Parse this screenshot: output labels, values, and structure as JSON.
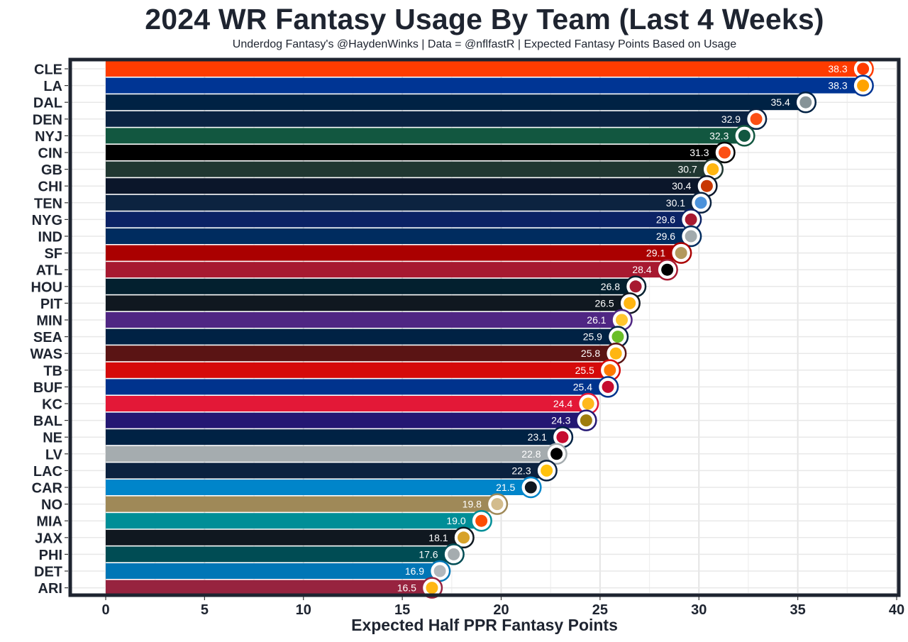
{
  "chart_data": {
    "type": "bar",
    "orientation": "horizontal",
    "title": "2024 WR Fantasy Usage By Team (Last 4 Weeks)",
    "subtitle": "Underdog Fantasy's @HaydenWinks | Data = @nflfastR | Expected Fantasy Points Based on Usage",
    "xlabel": "Expected Half PPR Fantasy Points",
    "ylabel": "",
    "xlim": [
      0,
      40
    ],
    "xticks": [
      0,
      5,
      10,
      15,
      20,
      25,
      30,
      35,
      40
    ],
    "grid": true,
    "legend": "none",
    "categories": [
      "CLE",
      "LA",
      "DAL",
      "DEN",
      "NYJ",
      "CIN",
      "GB",
      "CHI",
      "TEN",
      "NYG",
      "IND",
      "SF",
      "ATL",
      "HOU",
      "PIT",
      "MIN",
      "SEA",
      "WAS",
      "TB",
      "BUF",
      "KC",
      "BAL",
      "NE",
      "LV",
      "LAC",
      "CAR",
      "NO",
      "MIA",
      "JAX",
      "PHI",
      "DET",
      "ARI"
    ],
    "values": [
      38.3,
      38.3,
      35.4,
      32.9,
      32.3,
      31.3,
      30.7,
      30.4,
      30.1,
      29.6,
      29.6,
      29.1,
      28.4,
      26.8,
      26.5,
      26.1,
      25.9,
      25.8,
      25.5,
      25.4,
      24.4,
      24.3,
      23.1,
      22.8,
      22.3,
      21.5,
      19.8,
      19.0,
      18.1,
      17.6,
      16.9,
      16.5
    ],
    "labels": [
      "38.3",
      "38.3",
      "35.4",
      "32.9",
      "32.3",
      "31.3",
      "30.7",
      "30.4",
      "30.1",
      "29.6",
      "29.6",
      "29.1",
      "28.4",
      "26.8",
      "26.5",
      "26.1",
      "25.9",
      "25.8",
      "25.5",
      "25.4",
      "24.4",
      "24.3",
      "23.1",
      "22.8",
      "22.3",
      "21.5",
      "19.8",
      "19.0",
      "18.1",
      "17.6",
      "16.9",
      "16.5"
    ],
    "colors": [
      "#FF3C00",
      "#003594",
      "#002244",
      "#0A2343",
      "#125740",
      "#000000",
      "#203731",
      "#0B162A",
      "#0C2340",
      "#0B2265",
      "#002C5F",
      "#AA0000",
      "#A71930",
      "#03202F",
      "#101820",
      "#4F2683",
      "#002244",
      "#5A1414",
      "#D50A0A",
      "#00338D",
      "#E31837",
      "#241773",
      "#002244",
      "#A5ACAF",
      "#0B2240",
      "#0085CA",
      "#9F8958",
      "#008E97",
      "#101820",
      "#004C54",
      "#0076B6",
      "#97233F"
    ],
    "logo_colors": [
      "#FF3C00",
      "#FFA300",
      "#869397",
      "#FB4F14",
      "#125740",
      "#FB4F14",
      "#FFB612",
      "#C83803",
      "#4B92DB",
      "#A71930",
      "#A2AAAD",
      "#B3995D",
      "#000000",
      "#A71930",
      "#FFB612",
      "#FFC62F",
      "#69BE28",
      "#FFB612",
      "#FF7900",
      "#C60C30",
      "#FFB81C",
      "#9E7C0C",
      "#C60C30",
      "#000000",
      "#FFC20E",
      "#101820",
      "#D3BC8D",
      "#FC4C02",
      "#D7A22A",
      "#A5ACAF",
      "#B0B7BC",
      "#FFB612"
    ]
  }
}
